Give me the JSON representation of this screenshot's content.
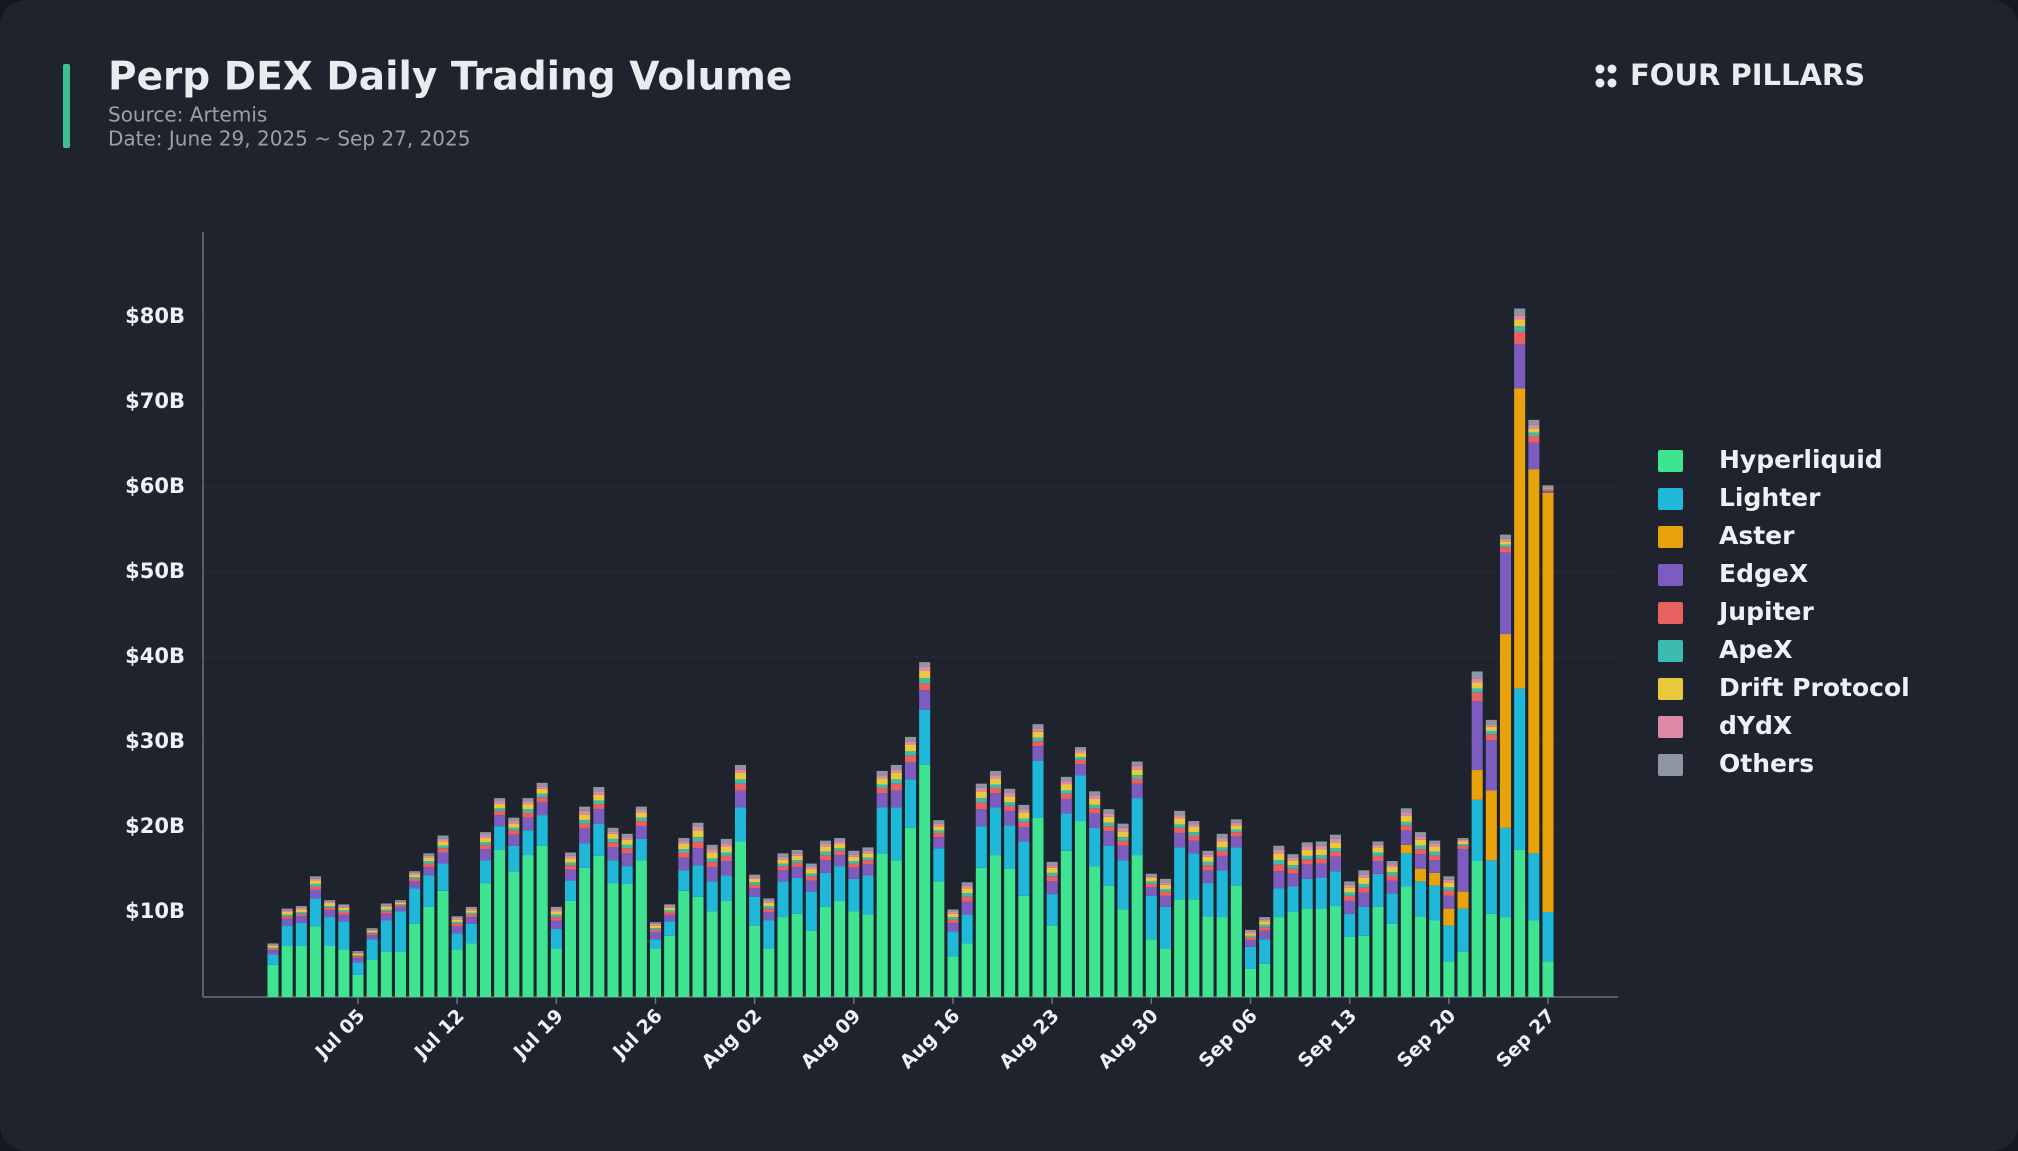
{
  "brand": "FOUR PILLARS",
  "chart_data": {
    "type": "stacked_bar",
    "title": "Perp DEX Daily Trading Volume",
    "subtitle": [
      "Source: Artemis",
      "Date: June 29, 2025 ~ Sep 27, 2025"
    ],
    "categories": [
      null,
      null,
      null,
      null,
      null,
      null,
      "Jul 05",
      null,
      null,
      null,
      null,
      null,
      null,
      "Jul 12",
      null,
      null,
      null,
      null,
      null,
      null,
      "Jul 19",
      null,
      null,
      null,
      null,
      null,
      null,
      "Jul 26",
      null,
      null,
      null,
      null,
      null,
      null,
      "Aug 02",
      null,
      null,
      null,
      null,
      null,
      null,
      "Aug 09",
      null,
      null,
      null,
      null,
      null,
      null,
      "Aug 16",
      null,
      null,
      null,
      null,
      null,
      null,
      "Aug 23",
      null,
      null,
      null,
      null,
      null,
      null,
      "Aug 30",
      null,
      null,
      null,
      null,
      null,
      null,
      "Sep 06",
      null,
      null,
      null,
      null,
      null,
      null,
      "Sep 13",
      null,
      null,
      null,
      null,
      null,
      null,
      "Sep 20",
      null,
      null,
      null,
      null,
      null,
      null,
      "Sep 27"
    ],
    "ylim": [
      0,
      90
    ],
    "yticks": [
      {
        "value": 10,
        "label": "$10B"
      },
      {
        "value": 20,
        "label": "$20B"
      },
      {
        "value": 30,
        "label": "$30B"
      },
      {
        "value": 40,
        "label": "$40B"
      },
      {
        "value": 50,
        "label": "$50B"
      },
      {
        "value": 60,
        "label": "$60B"
      },
      {
        "value": 70,
        "label": "$70B"
      },
      {
        "value": 80,
        "label": "$80B"
      }
    ],
    "grid": true,
    "legend": "right",
    "series": [
      {
        "name": "Hyperliquid",
        "color": "#3ee48f",
        "values": [
          3.8,
          6.0,
          6.0,
          8.3,
          6.0,
          5.6,
          2.6,
          4.4,
          5.3,
          5.3,
          8.6,
          10.6,
          12.5,
          5.6,
          6.3,
          13.4,
          17.3,
          14.8,
          16.7,
          17.8,
          5.7,
          11.3,
          15.2,
          16.6,
          13.4,
          13.3,
          16.1,
          5.7,
          7.2,
          12.5,
          11.8,
          10.1,
          11.3,
          18.3,
          8.4,
          5.7,
          9.4,
          9.8,
          7.8,
          10.6,
          11.3,
          10.1,
          9.7,
          16.9,
          16.1,
          19.9,
          27.3,
          13.6,
          4.8,
          6.3,
          15.2,
          16.7,
          15.1,
          11.9,
          21.1,
          8.4,
          17.2,
          20.7,
          15.4,
          13.1,
          10.3,
          16.7,
          6.8,
          5.7,
          11.5,
          11.5,
          9.5,
          9.4,
          13.1,
          3.3,
          3.9,
          9.4,
          10.0,
          10.4,
          10.4,
          10.7,
          7.1,
          7.2,
          10.6,
          8.6,
          13.0,
          9.5,
          9.0,
          4.2,
          5.3,
          16.0,
          9.8,
          9.4,
          17.3,
          9.0,
          4.2
        ]
      },
      {
        "name": "Lighter",
        "color": "#1fb8d8",
        "values": [
          1.2,
          2.4,
          2.7,
          3.3,
          3.4,
          3.3,
          1.5,
          2.4,
          3.7,
          4.8,
          4.2,
          3.7,
          3.2,
          1.9,
          2.3,
          2.7,
          2.8,
          3.0,
          2.9,
          3.6,
          2.3,
          2.4,
          2.9,
          3.8,
          2.7,
          2.1,
          2.5,
          1.1,
          1.7,
          2.4,
          3.7,
          3.5,
          3.0,
          4.0,
          3.4,
          3.3,
          4.2,
          4.2,
          4.6,
          4.0,
          4.1,
          3.8,
          4.6,
          5.4,
          6.2,
          5.7,
          6.5,
          3.9,
          2.9,
          3.4,
          4.9,
          5.6,
          5.1,
          6.4,
          6.7,
          3.7,
          4.4,
          5.4,
          4.5,
          4.7,
          5.8,
          6.7,
          5.1,
          4.9,
          6.1,
          5.4,
          3.9,
          5.5,
          4.5,
          2.6,
          2.9,
          3.4,
          3.0,
          3.5,
          3.6,
          4.1,
          2.7,
          3.4,
          3.9,
          3.6,
          3.9,
          4.1,
          4.1,
          4.2,
          5.1,
          7.2,
          6.3,
          10.5,
          19.0,
          7.9,
          5.8
        ]
      },
      {
        "name": "Aster",
        "color": "#e8a20c",
        "values": [
          0,
          0,
          0,
          0,
          0,
          0,
          0,
          0,
          0,
          0,
          0,
          0,
          0,
          0,
          0,
          0,
          0,
          0,
          0,
          0,
          0,
          0,
          0,
          0,
          0,
          0,
          0,
          0,
          0,
          0,
          0,
          0,
          0,
          0,
          0,
          0,
          0,
          0,
          0,
          0,
          0,
          0,
          0,
          0,
          0,
          0,
          0,
          0,
          0,
          0,
          0,
          0,
          0,
          0,
          0,
          0,
          0,
          0,
          0,
          0,
          0,
          0,
          0,
          0,
          0,
          0,
          0,
          0,
          0,
          0,
          0,
          0,
          0,
          0,
          0,
          0,
          0,
          0,
          0,
          0,
          1.0,
          1.5,
          1.5,
          2.0,
          2.0,
          3.5,
          8.2,
          22.8,
          35.3,
          45.2,
          49.3
        ]
      },
      {
        "name": "EdgeX",
        "color": "#7c5cbf",
        "values": [
          0.5,
          0.8,
          0.8,
          1.0,
          0.8,
          0.8,
          0.5,
          0.5,
          0.8,
          0.5,
          0.8,
          1.0,
          1.3,
          0.8,
          0.8,
          1.3,
          1.3,
          1.3,
          1.5,
          1.5,
          1.0,
          1.3,
          1.7,
          1.7,
          1.5,
          1.5,
          1.5,
          0.8,
          0.8,
          1.5,
          2.0,
          1.7,
          1.7,
          2.0,
          1.0,
          1.0,
          1.3,
          1.3,
          1.3,
          1.5,
          1.3,
          1.3,
          1.3,
          1.7,
          2.0,
          2.0,
          2.3,
          1.3,
          1.0,
          1.5,
          2.0,
          1.7,
          1.7,
          1.7,
          1.7,
          1.5,
          1.7,
          1.3,
          1.7,
          1.7,
          1.7,
          1.7,
          1.0,
          1.3,
          1.7,
          1.5,
          1.5,
          1.7,
          1.3,
          0.8,
          1.0,
          2.0,
          1.5,
          1.7,
          1.7,
          1.7,
          1.5,
          1.7,
          1.5,
          1.5,
          1.7,
          1.7,
          1.5,
          1.5,
          5.0,
          8.1,
          5.9,
          9.6,
          5.2,
          3.1,
          0.2
        ]
      },
      {
        "name": "Jupiter",
        "color": "#e86060",
        "values": [
          0.2,
          0.3,
          0.3,
          0.4,
          0.3,
          0.3,
          0.2,
          0.2,
          0.3,
          0.2,
          0.3,
          0.4,
          0.5,
          0.3,
          0.3,
          0.5,
          0.5,
          0.5,
          0.6,
          0.6,
          0.4,
          0.5,
          0.6,
          0.6,
          0.6,
          0.6,
          0.6,
          0.3,
          0.3,
          0.6,
          0.8,
          0.6,
          0.6,
          0.8,
          0.4,
          0.4,
          0.5,
          0.5,
          0.5,
          0.6,
          0.5,
          0.5,
          0.5,
          0.6,
          0.8,
          0.8,
          0.8,
          0.5,
          0.4,
          0.6,
          0.8,
          0.6,
          0.6,
          0.6,
          0.6,
          0.6,
          0.6,
          0.5,
          0.6,
          0.6,
          0.6,
          0.6,
          0.4,
          0.5,
          0.6,
          0.6,
          0.6,
          0.6,
          0.5,
          0.3,
          0.4,
          0.8,
          0.6,
          0.6,
          0.6,
          0.6,
          0.6,
          0.6,
          0.6,
          0.6,
          0.6,
          0.6,
          0.6,
          0.6,
          0.4,
          1.0,
          0.7,
          0.6,
          1.5,
          0.8,
          0.2
        ]
      },
      {
        "name": "ApeX",
        "color": "#3cbcb0",
        "values": [
          0.1,
          0.2,
          0.2,
          0.3,
          0.2,
          0.2,
          0.1,
          0.1,
          0.2,
          0.1,
          0.2,
          0.3,
          0.3,
          0.2,
          0.2,
          0.3,
          0.3,
          0.3,
          0.4,
          0.4,
          0.3,
          0.3,
          0.4,
          0.4,
          0.4,
          0.4,
          0.4,
          0.2,
          0.2,
          0.4,
          0.5,
          0.4,
          0.4,
          0.5,
          0.3,
          0.3,
          0.3,
          0.3,
          0.3,
          0.4,
          0.3,
          0.3,
          0.3,
          0.4,
          0.5,
          0.5,
          0.6,
          0.3,
          0.3,
          0.4,
          0.5,
          0.4,
          0.4,
          0.4,
          0.4,
          0.4,
          0.4,
          0.3,
          0.4,
          0.4,
          0.4,
          0.4,
          0.3,
          0.3,
          0.4,
          0.4,
          0.4,
          0.4,
          0.3,
          0.2,
          0.3,
          0.5,
          0.4,
          0.4,
          0.4,
          0.4,
          0.4,
          0.4,
          0.4,
          0.4,
          0.4,
          0.4,
          0.4,
          0.4,
          0.2,
          0.5,
          0.4,
          0.3,
          0.6,
          0.4,
          0.1
        ]
      },
      {
        "name": "Drift Protocol",
        "color": "#e8c83c",
        "values": [
          0.2,
          0.3,
          0.3,
          0.4,
          0.3,
          0.3,
          0.2,
          0.2,
          0.3,
          0.2,
          0.3,
          0.4,
          0.5,
          0.3,
          0.3,
          0.5,
          0.5,
          0.5,
          0.6,
          0.6,
          0.4,
          0.5,
          0.7,
          0.7,
          0.6,
          0.6,
          0.6,
          0.3,
          0.3,
          0.6,
          0.8,
          0.7,
          0.7,
          0.8,
          0.4,
          0.4,
          0.5,
          0.5,
          0.5,
          0.6,
          0.5,
          0.5,
          0.5,
          0.7,
          0.8,
          0.8,
          0.9,
          0.5,
          0.4,
          0.6,
          0.8,
          0.7,
          0.7,
          0.7,
          0.7,
          0.6,
          0.7,
          0.5,
          0.7,
          0.7,
          0.7,
          0.7,
          0.4,
          0.5,
          0.7,
          0.6,
          0.6,
          0.7,
          0.5,
          0.3,
          0.4,
          0.8,
          0.6,
          0.7,
          0.7,
          0.7,
          0.6,
          0.7,
          0.6,
          0.6,
          0.7,
          0.7,
          0.6,
          0.6,
          0.3,
          0.7,
          0.5,
          0.4,
          0.8,
          0.5,
          0.1
        ]
      },
      {
        "name": "dYdX",
        "color": "#e088a8",
        "values": [
          0.1,
          0.2,
          0.2,
          0.2,
          0.2,
          0.2,
          0.1,
          0.1,
          0.2,
          0.1,
          0.2,
          0.2,
          0.3,
          0.2,
          0.2,
          0.3,
          0.3,
          0.3,
          0.3,
          0.3,
          0.2,
          0.3,
          0.4,
          0.4,
          0.3,
          0.3,
          0.3,
          0.2,
          0.2,
          0.3,
          0.4,
          0.4,
          0.4,
          0.4,
          0.2,
          0.2,
          0.3,
          0.3,
          0.3,
          0.3,
          0.3,
          0.3,
          0.3,
          0.4,
          0.4,
          0.4,
          0.5,
          0.3,
          0.2,
          0.3,
          0.4,
          0.4,
          0.4,
          0.4,
          0.4,
          0.3,
          0.4,
          0.3,
          0.4,
          0.4,
          0.4,
          0.4,
          0.2,
          0.3,
          0.4,
          0.3,
          0.3,
          0.4,
          0.3,
          0.2,
          0.2,
          0.4,
          0.3,
          0.4,
          0.4,
          0.4,
          0.3,
          0.4,
          0.3,
          0.3,
          0.4,
          0.4,
          0.3,
          0.3,
          0.2,
          0.5,
          0.3,
          0.3,
          0.5,
          0.4,
          0.1
        ]
      },
      {
        "name": "Others",
        "color": "#8f96a3",
        "values": [
          0.2,
          0.2,
          0.2,
          0.3,
          0.2,
          0.2,
          0.2,
          0.2,
          0.2,
          0.2,
          0.2,
          0.3,
          0.4,
          0.2,
          0.2,
          0.4,
          0.4,
          0.4,
          0.4,
          0.4,
          0.3,
          0.4,
          0.5,
          0.5,
          0.4,
          0.4,
          0.4,
          0.2,
          0.2,
          0.4,
          0.5,
          0.5,
          0.5,
          0.5,
          0.3,
          0.3,
          0.4,
          0.4,
          0.4,
          0.4,
          0.4,
          0.4,
          0.4,
          0.5,
          0.5,
          0.5,
          0.5,
          0.4,
          0.3,
          0.4,
          0.5,
          0.5,
          0.5,
          0.5,
          0.5,
          0.4,
          0.5,
          0.4,
          0.5,
          0.5,
          0.5,
          0.5,
          0.3,
          0.4,
          0.5,
          0.4,
          0.4,
          0.5,
          0.4,
          0.2,
          0.3,
          0.5,
          0.4,
          0.5,
          0.5,
          0.5,
          0.4,
          0.5,
          0.4,
          0.4,
          0.5,
          0.5,
          0.4,
          0.4,
          0.2,
          0.8,
          0.5,
          0.5,
          0.8,
          0.6,
          0.2
        ]
      }
    ]
  }
}
